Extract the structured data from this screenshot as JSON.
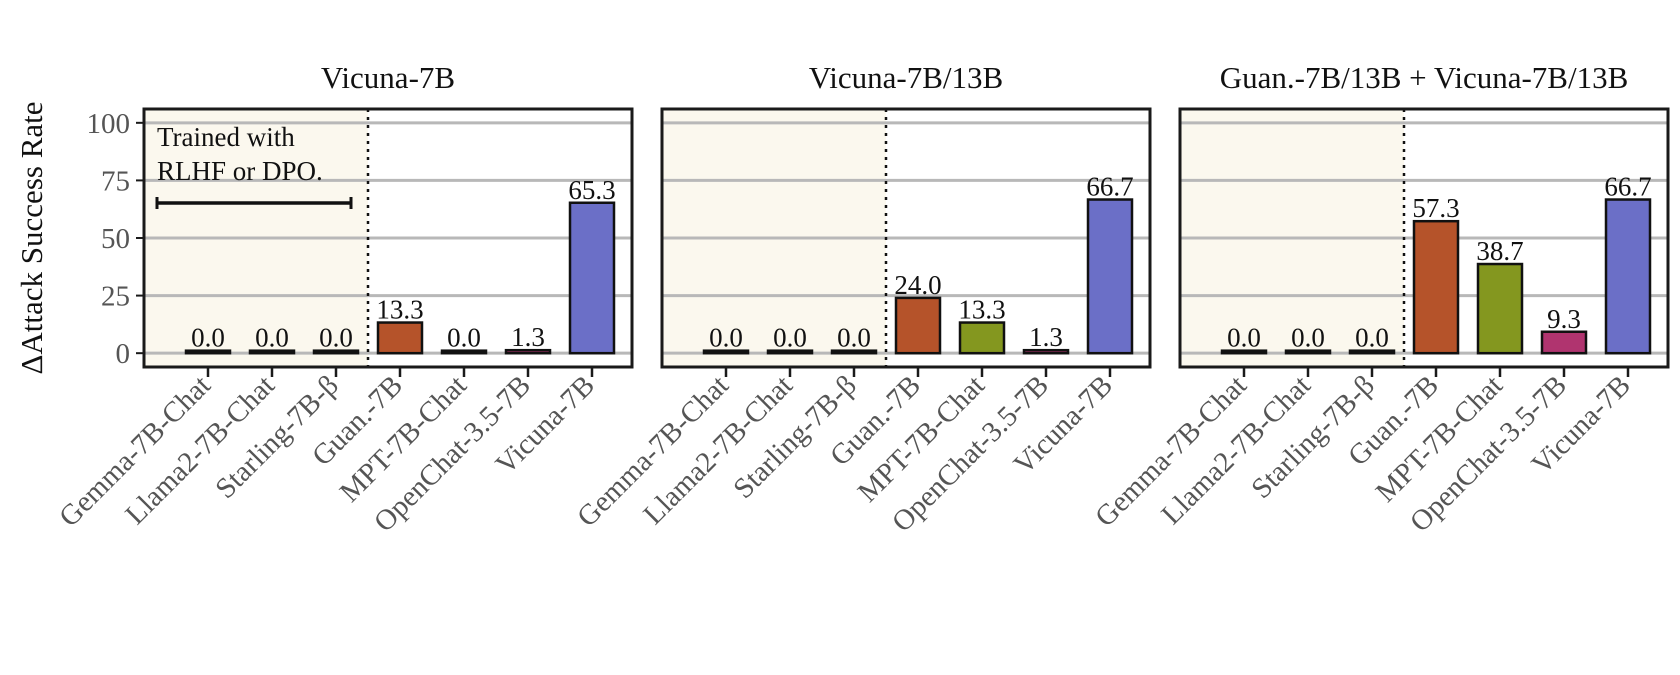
{
  "chart_data": {
    "type": "bar",
    "ylabel": "ΔAttack Success Rate",
    "yticks": [
      0,
      25,
      50,
      75,
      100
    ],
    "ylim": [
      -6,
      106
    ],
    "grid": "horizontal",
    "categories": [
      "Gemma-7B-Chat",
      "Llama2-7B-Chat",
      "Starling-7B-β",
      "Guan.-7B",
      "MPT-7B-Chat",
      "OpenChat-3.5-7B",
      "Vicuna-7B"
    ],
    "category_colors": [
      "#1a1a1a",
      "#1a1a1a",
      "#1a1a1a",
      "#b5532a",
      "#84971f",
      "#b0346f",
      "#6b6fc7"
    ],
    "shaded_region_color": "#fbf8ee",
    "annotation": {
      "line1": "Trained with",
      "line2": "RLHF or DPO."
    },
    "panels": [
      {
        "title": "Vicuna-7B",
        "values": [
          0.0,
          0.0,
          0.0,
          13.3,
          0.0,
          1.3,
          65.3
        ],
        "labels": [
          "0.0",
          "0.0",
          "0.0",
          "13.3",
          "0.0",
          "1.3",
          "65.3"
        ]
      },
      {
        "title": "Vicuna-7B/13B",
        "values": [
          0.0,
          0.0,
          0.0,
          24.0,
          13.3,
          1.3,
          66.7
        ],
        "labels": [
          "0.0",
          "0.0",
          "0.0",
          "24.0",
          "13.3",
          "1.3",
          "66.7"
        ]
      },
      {
        "title": "Guan.-7B/13B + Vicuna-7B/13B",
        "values": [
          0.0,
          0.0,
          0.0,
          57.3,
          38.7,
          9.3,
          66.7
        ],
        "labels": [
          "0.0",
          "0.0",
          "0.0",
          "57.3",
          "38.7",
          "9.3",
          "66.7"
        ]
      }
    ]
  }
}
